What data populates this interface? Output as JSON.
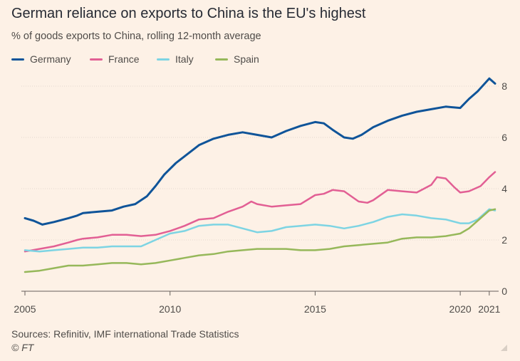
{
  "chart_data": {
    "type": "line",
    "title": "German reliance on exports to China is the EU's highest",
    "subtitle": "% of goods exports to China, rolling 12-month average",
    "xlabel": "",
    "ylabel": "% of goods exports to China",
    "xlim": [
      2005,
      2021.2
    ],
    "ylim": [
      0,
      8.5
    ],
    "y_ticks": [
      0,
      2,
      4,
      6,
      8
    ],
    "y_tick_labels": [
      "0",
      "2",
      "4",
      "6",
      "8"
    ],
    "x_ticks": [
      2005,
      2010,
      2015,
      2020,
      2021
    ],
    "x_tick_labels": [
      "2005",
      "2010",
      "2015",
      "2020",
      "2021"
    ],
    "grid": true,
    "legend_position": "top-left",
    "series": [
      {
        "name": "Germany",
        "color": "#0f5499",
        "x": [
          2005.0,
          2005.3,
          2005.6,
          2006.0,
          2006.5,
          2006.8,
          2007.0,
          2007.5,
          2008.0,
          2008.4,
          2008.8,
          2009.2,
          2009.5,
          2009.8,
          2010.2,
          2010.6,
          2011.0,
          2011.5,
          2012.0,
          2012.5,
          2013.0,
          2013.5,
          2014.0,
          2014.5,
          2015.0,
          2015.3,
          2015.6,
          2016.0,
          2016.3,
          2016.6,
          2017.0,
          2017.5,
          2018.0,
          2018.5,
          2019.0,
          2019.5,
          2020.0,
          2020.3,
          2020.6,
          2021.0,
          2021.2
        ],
        "values": [
          2.85,
          2.75,
          2.6,
          2.7,
          2.85,
          2.95,
          3.05,
          3.1,
          3.15,
          3.3,
          3.4,
          3.7,
          4.1,
          4.55,
          5.0,
          5.35,
          5.7,
          5.95,
          6.1,
          6.2,
          6.1,
          6.0,
          6.25,
          6.45,
          6.6,
          6.55,
          6.3,
          6.0,
          5.95,
          6.1,
          6.4,
          6.65,
          6.85,
          7.0,
          7.1,
          7.2,
          7.15,
          7.5,
          7.8,
          8.3,
          8.1
        ]
      },
      {
        "name": "France",
        "color": "#e25f94",
        "x": [
          2005.0,
          2005.5,
          2006.0,
          2006.5,
          2006.8,
          2007.0,
          2007.5,
          2008.0,
          2008.5,
          2009.0,
          2009.5,
          2010.0,
          2010.5,
          2011.0,
          2011.5,
          2012.0,
          2012.5,
          2012.8,
          2013.0,
          2013.5,
          2014.0,
          2014.5,
          2015.0,
          2015.3,
          2015.6,
          2016.0,
          2016.5,
          2016.8,
          2017.0,
          2017.5,
          2018.0,
          2018.5,
          2019.0,
          2019.2,
          2019.5,
          2019.8,
          2020.0,
          2020.3,
          2020.7,
          2021.0,
          2021.2
        ],
        "values": [
          1.55,
          1.65,
          1.75,
          1.9,
          2.0,
          2.05,
          2.1,
          2.2,
          2.2,
          2.15,
          2.2,
          2.35,
          2.55,
          2.8,
          2.85,
          3.1,
          3.3,
          3.5,
          3.4,
          3.3,
          3.35,
          3.4,
          3.75,
          3.8,
          3.95,
          3.9,
          3.5,
          3.45,
          3.55,
          3.95,
          3.9,
          3.85,
          4.15,
          4.45,
          4.4,
          4.05,
          3.85,
          3.9,
          4.1,
          4.45,
          4.65
        ]
      },
      {
        "name": "Italy",
        "color": "#7dd4e3",
        "x": [
          2005.0,
          2005.5,
          2006.0,
          2006.5,
          2007.0,
          2007.5,
          2008.0,
          2008.5,
          2009.0,
          2009.5,
          2010.0,
          2010.5,
          2011.0,
          2011.5,
          2012.0,
          2012.5,
          2013.0,
          2013.5,
          2014.0,
          2014.5,
          2015.0,
          2015.5,
          2016.0,
          2016.5,
          2017.0,
          2017.5,
          2018.0,
          2018.5,
          2019.0,
          2019.5,
          2020.0,
          2020.3,
          2020.6,
          2021.0,
          2021.2
        ],
        "values": [
          1.6,
          1.55,
          1.6,
          1.65,
          1.7,
          1.7,
          1.75,
          1.75,
          1.75,
          2.0,
          2.25,
          2.35,
          2.55,
          2.6,
          2.6,
          2.45,
          2.3,
          2.35,
          2.5,
          2.55,
          2.6,
          2.55,
          2.45,
          2.55,
          2.7,
          2.9,
          3.0,
          2.95,
          2.85,
          2.8,
          2.65,
          2.65,
          2.8,
          3.2,
          3.15
        ]
      },
      {
        "name": "Spain",
        "color": "#96b85a",
        "x": [
          2005.0,
          2005.5,
          2006.0,
          2006.5,
          2007.0,
          2007.5,
          2008.0,
          2008.5,
          2009.0,
          2009.5,
          2010.0,
          2010.5,
          2011.0,
          2011.5,
          2012.0,
          2012.5,
          2013.0,
          2013.5,
          2014.0,
          2014.5,
          2015.0,
          2015.5,
          2016.0,
          2016.5,
          2017.0,
          2017.5,
          2018.0,
          2018.5,
          2019.0,
          2019.5,
          2020.0,
          2020.3,
          2020.6,
          2021.0,
          2021.2
        ],
        "values": [
          0.75,
          0.8,
          0.9,
          1.0,
          1.0,
          1.05,
          1.1,
          1.1,
          1.05,
          1.1,
          1.2,
          1.3,
          1.4,
          1.45,
          1.55,
          1.6,
          1.65,
          1.65,
          1.65,
          1.6,
          1.6,
          1.65,
          1.75,
          1.8,
          1.85,
          1.9,
          2.05,
          2.1,
          2.1,
          2.15,
          2.25,
          2.45,
          2.75,
          3.15,
          3.2
        ]
      }
    ],
    "source": "Sources: Refinitiv, IMF international Trade Statistics",
    "credit": "© FT"
  },
  "colors": {
    "background": "#fdf1e6",
    "gridline": "#e3d8cf",
    "axis": "#66605c"
  }
}
